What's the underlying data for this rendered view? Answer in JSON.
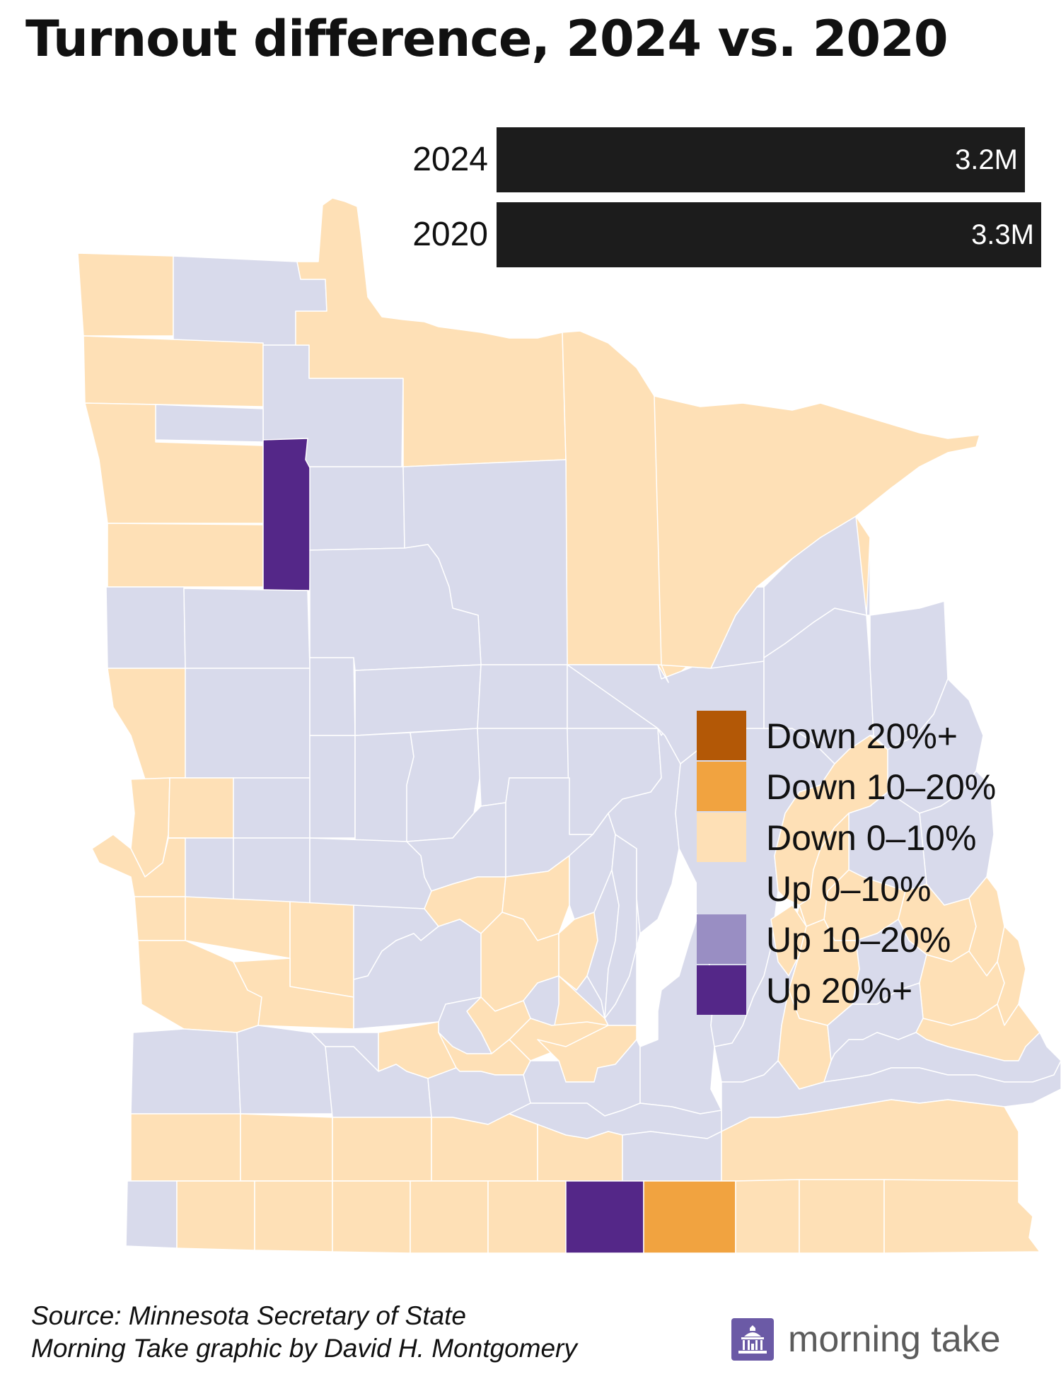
{
  "title": "Turnout difference, 2024 vs. 2020",
  "colors": {
    "down_20_plus": "#b35806",
    "down_10_20": "#f1a340",
    "down_0_10": "#fee0b6",
    "up_0_10": "#d8daeb",
    "up_10_20": "#998ec3",
    "up_20_plus": "#542788"
  },
  "turnout_bars": [
    {
      "year": "2024",
      "value": 3.2,
      "label": "3.2M"
    },
    {
      "year": "2020",
      "value": 3.3,
      "label": "3.3M"
    }
  ],
  "legend": [
    {
      "label": "Down 20%+",
      "color": "#b35806"
    },
    {
      "label": "Down 10–20%",
      "color": "#f1a340"
    },
    {
      "label": "Down 0–10%",
      "color": "#fee0b6"
    },
    {
      "label": "Up 0–10%",
      "color": "#d8daeb"
    },
    {
      "label": "Up 10–20%",
      "color": "#998ec3"
    },
    {
      "label": "Up 20%+",
      "color": "#542788"
    }
  ],
  "footer": {
    "source": "Source: Minnesota Secretary of State",
    "credit": "Morning Take graphic by David H. Montgomery"
  },
  "brand": {
    "name": "morning take",
    "icon": "capitol-building-icon",
    "icon_color": "#6b5aa6"
  }
}
